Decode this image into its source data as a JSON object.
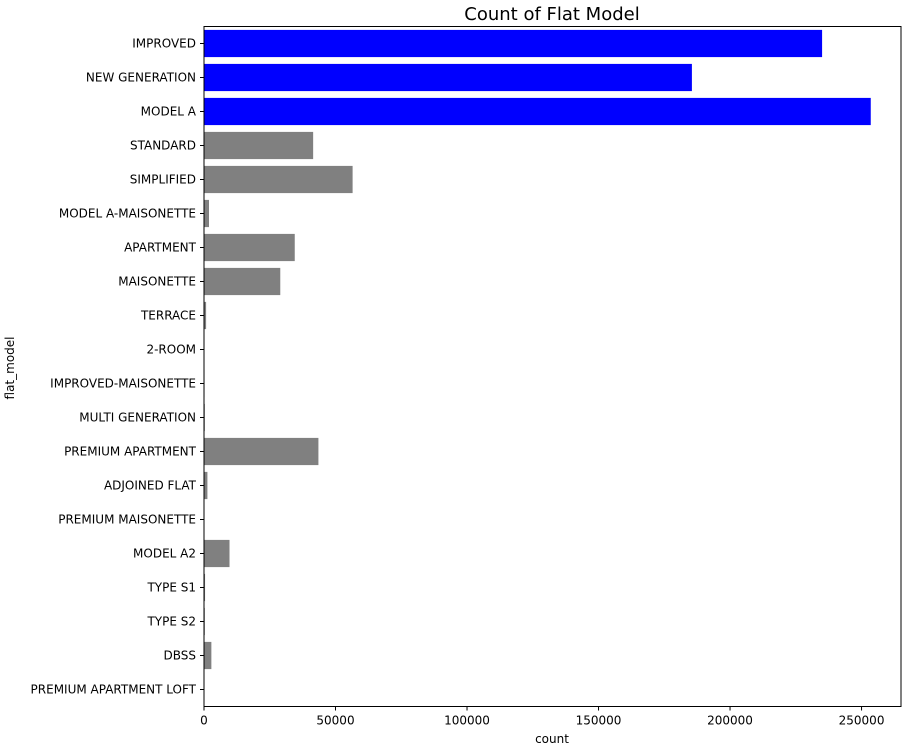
{
  "chart_data": {
    "type": "bar",
    "orientation": "horizontal",
    "title": "Count of Flat Model",
    "xlabel": "count",
    "ylabel": "flat_model",
    "xlim": [
      0,
      265000
    ],
    "xticks": [
      0,
      50000,
      100000,
      150000,
      200000,
      250000
    ],
    "grid": false,
    "legend": "none",
    "categories": [
      "IMPROVED",
      "NEW GENERATION",
      "MODEL A",
      "STANDARD",
      "SIMPLIFIED",
      "MODEL A-MAISONETTE",
      "APARTMENT",
      "MAISONETTE",
      "TERRACE",
      "2-ROOM",
      "IMPROVED-MAISONETTE",
      "MULTI GENERATION",
      "PREMIUM APARTMENT",
      "ADJOINED FLAT",
      "PREMIUM MAISONETTE",
      "MODEL A2",
      "TYPE S1",
      "TYPE S2",
      "DBSS",
      "PREMIUM APARTMENT LOFT"
    ],
    "values": [
      235000,
      185500,
      253500,
      41500,
      56500,
      1900,
      34500,
      29000,
      800,
      100,
      200,
      300,
      43500,
      1300,
      100,
      9700,
      400,
      300,
      2800,
      100
    ],
    "colors": [
      "#0000ff",
      "#0000ff",
      "#0000ff",
      "#808080",
      "#808080",
      "#808080",
      "#808080",
      "#808080",
      "#808080",
      "#808080",
      "#808080",
      "#808080",
      "#808080",
      "#808080",
      "#808080",
      "#808080",
      "#808080",
      "#808080",
      "#808080",
      "#808080"
    ]
  }
}
